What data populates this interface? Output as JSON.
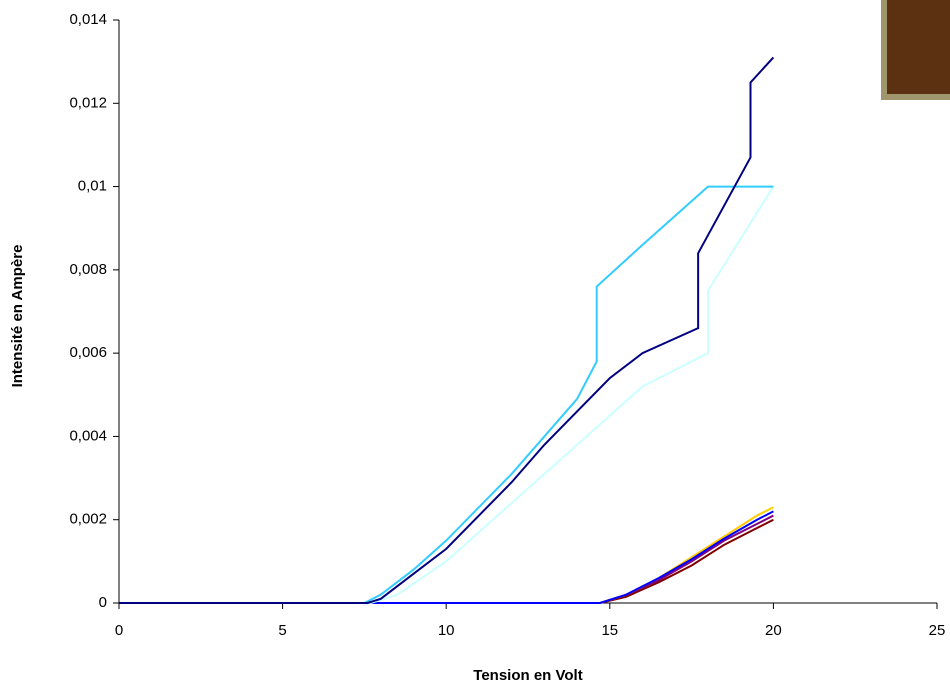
{
  "chart_data": {
    "type": "line",
    "x_label": "Tension en Volt",
    "y_label": "Intensité en Ampère",
    "xlim": [
      0,
      25
    ],
    "xticks": [
      0,
      5,
      10,
      15,
      20,
      25
    ],
    "ylim": [
      0,
      0.014
    ],
    "yticks": [
      0,
      {
        "value": 0.002,
        "label": "0,002"
      },
      {
        "value": 0.004,
        "label": "0,004"
      },
      {
        "value": 0.006,
        "label": "0,006"
      },
      {
        "value": 0.008,
        "label": "0,008"
      },
      {
        "value": 0.01,
        "label": "0,01"
      },
      {
        "value": 0.012,
        "label": "0,012"
      },
      {
        "value": 0.014,
        "label": "0,014"
      }
    ],
    "grid": false,
    "series": [
      {
        "color": "#800000",
        "x": [
          0,
          14.7,
          15.5,
          16.5,
          17.5,
          18.5,
          19.5,
          20
        ],
        "values": [
          0,
          0,
          0.00015,
          0.0005,
          0.0009,
          0.0014,
          0.0018,
          0.002
        ]
      },
      {
        "color": "#800080",
        "x": [
          0,
          14.7,
          15.5,
          16.5,
          17.5,
          18.5,
          19.5,
          20
        ],
        "values": [
          0,
          0,
          0.0002,
          0.00055,
          0.001,
          0.0015,
          0.0019,
          0.0021
        ]
      },
      {
        "color": "#ffcc00",
        "x": [
          0,
          14.7,
          15.5,
          16.5,
          17.5,
          18.5,
          19.5,
          20
        ],
        "values": [
          0,
          0,
          0.0002,
          0.0006,
          0.0011,
          0.0016,
          0.0021,
          0.0023
        ]
      },
      {
        "color": "#0000ff",
        "x": [
          0,
          14.7,
          15.5,
          16.5,
          17.5,
          18.5,
          19.5,
          20
        ],
        "values": [
          0,
          0,
          0.0002,
          0.0006,
          0.00105,
          0.00155,
          0.002,
          0.0022
        ]
      },
      {
        "color": "#ccffff",
        "x": [
          0,
          7.7,
          8.5,
          10,
          11,
          12,
          13,
          14,
          15,
          16,
          18,
          18,
          20
        ],
        "values": [
          0,
          0,
          0.0002,
          0.001,
          0.0017,
          0.0024,
          0.0031,
          0.0038,
          0.0045,
          0.0052,
          0.006,
          0.0075,
          0.01
        ]
      },
      {
        "color": "#33ccff",
        "x": [
          0,
          7.5,
          8,
          9,
          10,
          11,
          12,
          13,
          14,
          14.6,
          14.6,
          16,
          18,
          20
        ],
        "values": [
          0,
          0,
          0.0002,
          0.0008,
          0.0015,
          0.0023,
          0.0031,
          0.004,
          0.0049,
          0.0058,
          0.0076,
          0.0086,
          0.01,
          0.01
        ]
      },
      {
        "color": "#000080",
        "x": [
          0,
          7.6,
          8,
          9,
          10,
          11,
          12,
          13,
          14,
          15,
          16,
          17.7,
          17.7,
          19.3,
          19.3,
          20
        ],
        "values": [
          0,
          0,
          0.0001,
          0.0007,
          0.0013,
          0.0021,
          0.0029,
          0.0038,
          0.0046,
          0.0054,
          0.006,
          0.0066,
          0.0084,
          0.0107,
          0.0125,
          0.0131
        ]
      }
    ]
  }
}
